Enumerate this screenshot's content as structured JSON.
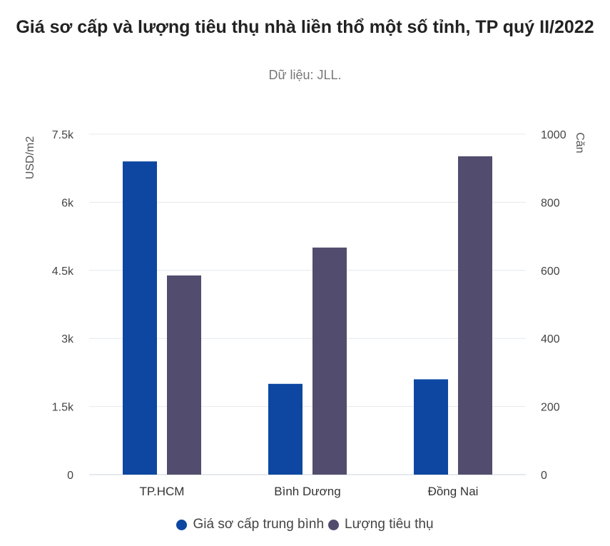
{
  "chart_data": {
    "type": "bar",
    "title": "Giá sơ cấp và lượng tiêu thụ nhà liền thổ một số tỉnh, TP quý II/2022",
    "subtitle": "Dữ liệu: JLL.",
    "categories": [
      "TP.HCM",
      "Bình Dương",
      "Đồng Nai"
    ],
    "y_left": {
      "label": "USD/m2",
      "range": [
        0,
        7500
      ],
      "ticks": [
        0,
        1500,
        3000,
        4500,
        6000,
        7500
      ],
      "tick_labels": [
        "0",
        "1.5k",
        "3k",
        "4.5k",
        "6k",
        "7.5k"
      ]
    },
    "y_right": {
      "label": "Căn",
      "range": [
        0,
        1000
      ],
      "ticks": [
        0,
        200,
        400,
        600,
        800,
        1000
      ],
      "tick_labels": [
        "0",
        "200",
        "400",
        "600",
        "800",
        "1000"
      ]
    },
    "series": [
      {
        "name": "Giá sơ cấp trung bình",
        "axis": "left",
        "color": "#0d47a1",
        "values": [
          6900,
          2000,
          2100
        ]
      },
      {
        "name": "Lượng tiêu thụ",
        "axis": "right",
        "color": "#524d6e",
        "values": [
          585,
          667,
          935
        ]
      }
    ],
    "grid": true,
    "legend_position": "bottom"
  }
}
